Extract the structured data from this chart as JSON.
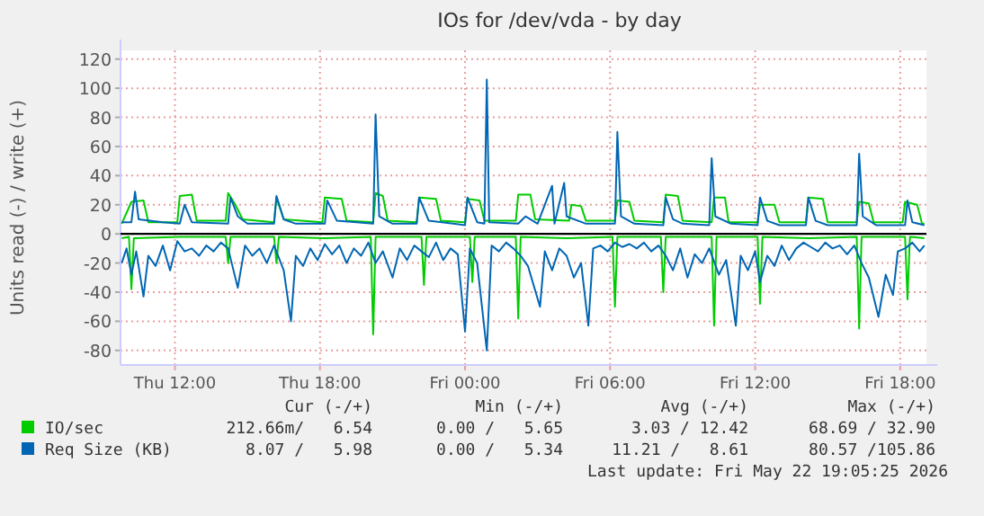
{
  "chart_data": {
    "type": "line",
    "title": "IOs for /dev/vda - by day",
    "ylabel": "Units read (-) / write (+)",
    "xlim": [
      "2026-05-21T09:45",
      "2026-05-22T19:05"
    ],
    "xticks": [
      {
        "value": "2026-05-21T12:00",
        "label": "Thu 12:00"
      },
      {
        "value": "2026-05-21T18:00",
        "label": "Thu 18:00"
      },
      {
        "value": "2026-05-22T00:00",
        "label": "Fri 00:00"
      },
      {
        "value": "2026-05-22T06:00",
        "label": "Fri 06:00"
      },
      {
        "value": "2026-05-22T12:00",
        "label": "Fri 12:00"
      },
      {
        "value": "2026-05-22T18:00",
        "label": "Fri 18:00"
      }
    ],
    "ylim": [
      -90,
      126
    ],
    "yticks": [
      -80,
      -60,
      -40,
      -20,
      0,
      20,
      40,
      60,
      80,
      100,
      120
    ],
    "grid": true,
    "legend": "bottom",
    "line_style": "solid",
    "ref_lines": [
      {
        "axis": "y",
        "value": 0,
        "color": "#000000"
      }
    ],
    "series": [
      {
        "name": "IO/sec",
        "color": "#00cc00",
        "x": [
          "2026-05-21T09:48",
          "2026-05-21T10:12",
          "2026-05-21T10:42",
          "2026-05-21T10:54",
          "2026-05-21T12:06",
          "2026-05-21T12:12",
          "2026-05-21T12:42",
          "2026-05-21T12:54",
          "2026-05-21T14:06",
          "2026-05-21T14:12",
          "2026-05-21T14:30",
          "2026-05-21T14:48",
          "2026-05-21T16:06",
          "2026-05-21T16:12",
          "2026-05-21T16:30",
          "2026-05-21T18:06",
          "2026-05-21T18:12",
          "2026-05-21T18:54",
          "2026-05-21T19:06",
          "2026-05-21T20:12",
          "2026-05-21T20:18",
          "2026-05-21T20:36",
          "2026-05-21T20:48",
          "2026-05-21T22:00",
          "2026-05-21T22:06",
          "2026-05-21T22:48",
          "2026-05-21T23:00",
          "2026-05-22T00:00",
          "2026-05-22T00:06",
          "2026-05-22T00:36",
          "2026-05-22T00:48",
          "2026-05-22T02:06",
          "2026-05-22T02:12",
          "2026-05-22T02:42",
          "2026-05-22T02:54",
          "2026-05-22T04:18",
          "2026-05-22T04:24",
          "2026-05-22T04:48",
          "2026-05-22T05:00",
          "2026-05-22T06:12",
          "2026-05-22T06:18",
          "2026-05-22T06:48",
          "2026-05-22T07:00",
          "2026-05-22T08:12",
          "2026-05-22T08:18",
          "2026-05-22T08:48",
          "2026-05-22T09:00",
          "2026-05-22T10:12",
          "2026-05-22T10:18",
          "2026-05-22T10:45",
          "2026-05-22T10:54",
          "2026-05-22T12:06",
          "2026-05-22T12:12",
          "2026-05-22T12:48",
          "2026-05-22T13:00",
          "2026-05-22T14:06",
          "2026-05-22T14:12",
          "2026-05-22T14:48",
          "2026-05-22T15:00",
          "2026-05-22T16:12",
          "2026-05-22T16:18",
          "2026-05-22T16:42",
          "2026-05-22T16:54",
          "2026-05-22T18:06",
          "2026-05-22T18:12",
          "2026-05-22T18:42",
          "2026-05-22T18:54",
          "2026-05-22T19:00"
        ],
        "values": [
          7,
          22,
          23,
          8,
          8,
          26,
          27,
          9,
          9,
          28,
          20,
          10,
          8,
          25,
          10,
          8,
          25,
          24,
          9,
          8,
          28,
          26,
          9,
          8,
          25,
          24,
          9,
          8,
          24,
          23,
          9,
          9,
          27,
          27,
          10,
          9,
          20,
          19,
          9,
          9,
          23,
          22,
          9,
          8,
          27,
          26,
          9,
          8,
          25,
          25,
          8,
          8,
          20,
          20,
          8,
          8,
          25,
          24,
          8,
          8,
          22,
          21,
          8,
          8,
          22,
          20,
          7,
          7
        ]
      },
      {
        "color": "#00cc00",
        "x": [
          "2026-05-21T09:48",
          "2026-05-21T10:06",
          "2026-05-21T10:12",
          "2026-05-21T10:18",
          "2026-05-21T12:12",
          "2026-05-21T14:06",
          "2026-05-21T14:12",
          "2026-05-21T14:18",
          "2026-05-21T16:06",
          "2026-05-21T16:12",
          "2026-05-21T16:18",
          "2026-05-21T18:12",
          "2026-05-21T20:06",
          "2026-05-21T20:12",
          "2026-05-21T20:18",
          "2026-05-21T22:12",
          "2026-05-21T22:18",
          "2026-05-21T22:24",
          "2026-05-22T00:12",
          "2026-05-22T00:18",
          "2026-05-22T00:24",
          "2026-05-22T02:06",
          "2026-05-22T02:12",
          "2026-05-22T02:18",
          "2026-05-22T04:12",
          "2026-05-22T06:06",
          "2026-05-22T06:12",
          "2026-05-22T06:18",
          "2026-05-22T08:06",
          "2026-05-22T08:12",
          "2026-05-22T08:18",
          "2026-05-22T10:12",
          "2026-05-22T10:18",
          "2026-05-22T10:24",
          "2026-05-22T12:06",
          "2026-05-22T12:12",
          "2026-05-22T12:18",
          "2026-05-22T14:12",
          "2026-05-22T16:12",
          "2026-05-22T16:18",
          "2026-05-22T16:24",
          "2026-05-22T18:12",
          "2026-05-22T18:18",
          "2026-05-22T18:24",
          "2026-05-22T19:00"
        ],
        "values": [
          -3,
          -2,
          -38,
          -3,
          -2,
          -2,
          -20,
          -2,
          -2,
          -20,
          -2,
          -3,
          -2,
          -69,
          -2,
          -2,
          -35,
          -2,
          -2,
          -33,
          -2,
          -2,
          -58,
          -2,
          -3,
          -2,
          -50,
          -2,
          -2,
          -40,
          -2,
          -2,
          -63,
          -2,
          -2,
          -48,
          -2,
          -3,
          -2,
          -65,
          -2,
          -2,
          -45,
          -2,
          -3
        ]
      },
      {
        "name": "Req Size (KB)",
        "color": "#0066b3",
        "x": [
          "2026-05-21T09:48",
          "2026-05-21T10:12",
          "2026-05-21T10:21",
          "2026-05-21T10:30",
          "2026-05-21T11:30",
          "2026-05-21T12:12",
          "2026-05-21T12:24",
          "2026-05-21T12:42",
          "2026-05-21T14:12",
          "2026-05-21T14:18",
          "2026-05-21T14:36",
          "2026-05-21T15:00",
          "2026-05-21T16:06",
          "2026-05-21T16:12",
          "2026-05-21T16:30",
          "2026-05-21T17:00",
          "2026-05-21T18:12",
          "2026-05-21T18:18",
          "2026-05-21T18:42",
          "2026-05-21T20:12",
          "2026-05-21T20:18",
          "2026-05-21T20:27",
          "2026-05-21T21:00",
          "2026-05-21T22:00",
          "2026-05-21T22:06",
          "2026-05-21T22:30",
          "2026-05-22T00:00",
          "2026-05-22T00:06",
          "2026-05-22T00:30",
          "2026-05-22T00:48",
          "2026-05-22T00:54",
          "2026-05-22T01:00",
          "2026-05-22T02:12",
          "2026-05-22T02:30",
          "2026-05-22T03:00",
          "2026-05-22T03:36",
          "2026-05-22T03:42",
          "2026-05-22T04:06",
          "2026-05-22T04:12",
          "2026-05-22T05:00",
          "2026-05-22T06:12",
          "2026-05-22T06:18",
          "2026-05-22T06:27",
          "2026-05-22T07:00",
          "2026-05-22T08:12",
          "2026-05-22T08:18",
          "2026-05-22T08:36",
          "2026-05-22T09:00",
          "2026-05-22T10:06",
          "2026-05-22T10:12",
          "2026-05-22T10:21",
          "2026-05-22T11:00",
          "2026-05-22T12:06",
          "2026-05-22T12:12",
          "2026-05-22T12:30",
          "2026-05-22T13:00",
          "2026-05-22T14:06",
          "2026-05-22T14:12",
          "2026-05-22T14:30",
          "2026-05-22T15:00",
          "2026-05-22T16:12",
          "2026-05-22T16:18",
          "2026-05-22T16:27",
          "2026-05-22T17:00",
          "2026-05-22T18:12",
          "2026-05-22T18:18",
          "2026-05-22T18:30",
          "2026-05-22T19:00"
        ],
        "values": [
          8,
          8,
          29,
          10,
          8,
          7,
          20,
          8,
          7,
          25,
          12,
          7,
          7,
          26,
          10,
          7,
          7,
          23,
          9,
          7,
          82,
          12,
          7,
          7,
          25,
          9,
          6,
          25,
          8,
          7,
          106,
          8,
          7,
          12,
          7,
          33,
          7,
          35,
          12,
          7,
          7,
          70,
          12,
          7,
          6,
          25,
          10,
          7,
          6,
          52,
          12,
          7,
          6,
          25,
          9,
          6,
          6,
          25,
          9,
          6,
          6,
          55,
          12,
          6,
          6,
          23,
          8,
          6
        ]
      },
      {
        "color": "#0066b3",
        "x": [
          "2026-05-21T09:48",
          "2026-05-21T10:00",
          "2026-05-21T10:12",
          "2026-05-21T10:24",
          "2026-05-21T10:42",
          "2026-05-21T10:54",
          "2026-05-21T11:12",
          "2026-05-21T11:30",
          "2026-05-21T11:48",
          "2026-05-21T12:06",
          "2026-05-21T12:24",
          "2026-05-21T12:42",
          "2026-05-21T13:00",
          "2026-05-21T13:18",
          "2026-05-21T13:36",
          "2026-05-21T13:54",
          "2026-05-21T14:12",
          "2026-05-21T14:36",
          "2026-05-21T14:54",
          "2026-05-21T15:12",
          "2026-05-21T15:30",
          "2026-05-21T15:48",
          "2026-05-21T16:06",
          "2026-05-21T16:30",
          "2026-05-21T16:48",
          "2026-05-21T17:00",
          "2026-05-21T17:18",
          "2026-05-21T17:36",
          "2026-05-21T17:54",
          "2026-05-21T18:12",
          "2026-05-21T18:30",
          "2026-05-21T18:48",
          "2026-05-21T19:06",
          "2026-05-21T19:24",
          "2026-05-21T19:42",
          "2026-05-21T20:00",
          "2026-05-21T20:18",
          "2026-05-21T20:36",
          "2026-05-21T21:00",
          "2026-05-21T21:18",
          "2026-05-21T21:36",
          "2026-05-21T21:54",
          "2026-05-21T22:12",
          "2026-05-21T22:30",
          "2026-05-21T22:48",
          "2026-05-21T23:06",
          "2026-05-21T23:24",
          "2026-05-21T23:42",
          "2026-05-22T00:00",
          "2026-05-22T00:12",
          "2026-05-22T00:30",
          "2026-05-22T00:54",
          "2026-05-22T01:06",
          "2026-05-22T01:24",
          "2026-05-22T01:42",
          "2026-05-22T02:00",
          "2026-05-22T02:18",
          "2026-05-22T02:36",
          "2026-05-22T03:06",
          "2026-05-22T03:18",
          "2026-05-22T03:36",
          "2026-05-22T03:54",
          "2026-05-22T04:12",
          "2026-05-22T04:30",
          "2026-05-22T04:48",
          "2026-05-22T05:06",
          "2026-05-22T05:18",
          "2026-05-22T05:36",
          "2026-05-22T05:54",
          "2026-05-22T06:12",
          "2026-05-22T06:30",
          "2026-05-22T06:48",
          "2026-05-22T07:06",
          "2026-05-22T07:24",
          "2026-05-22T07:42",
          "2026-05-22T08:00",
          "2026-05-22T08:18",
          "2026-05-22T08:36",
          "2026-05-22T08:54",
          "2026-05-22T09:12",
          "2026-05-22T09:30",
          "2026-05-22T09:48",
          "2026-05-22T10:06",
          "2026-05-22T10:30",
          "2026-05-22T10:48",
          "2026-05-22T11:12",
          "2026-05-22T11:24",
          "2026-05-22T11:42",
          "2026-05-22T12:00",
          "2026-05-22T12:12",
          "2026-05-22T12:30",
          "2026-05-22T12:48",
          "2026-05-22T13:06",
          "2026-05-22T13:24",
          "2026-05-22T13:42",
          "2026-05-22T14:00",
          "2026-05-22T14:18",
          "2026-05-22T14:36",
          "2026-05-22T14:54",
          "2026-05-22T15:12",
          "2026-05-22T15:30",
          "2026-05-22T15:48",
          "2026-05-22T16:06",
          "2026-05-22T16:24",
          "2026-05-22T16:42",
          "2026-05-22T17:06",
          "2026-05-22T17:24",
          "2026-05-22T17:42",
          "2026-05-22T17:54",
          "2026-05-22T18:12",
          "2026-05-22T18:30",
          "2026-05-22T18:48",
          "2026-05-22T19:00"
        ],
        "values": [
          -20,
          -10,
          -28,
          -12,
          -43,
          -15,
          -22,
          -8,
          -25,
          -5,
          -12,
          -10,
          -15,
          -8,
          -12,
          -6,
          -10,
          -37,
          -8,
          -15,
          -10,
          -20,
          -8,
          -25,
          -60,
          -15,
          -22,
          -10,
          -18,
          -7,
          -14,
          -8,
          -20,
          -10,
          -15,
          -6,
          -20,
          -12,
          -30,
          -10,
          -18,
          -8,
          -12,
          -16,
          -6,
          -18,
          -10,
          -14,
          -67,
          -10,
          -20,
          -80,
          -8,
          -12,
          -6,
          -10,
          -15,
          -22,
          -50,
          -12,
          -25,
          -10,
          -15,
          -30,
          -20,
          -63,
          -10,
          -8,
          -12,
          -6,
          -9,
          -7,
          -10,
          -6,
          -12,
          -8,
          -15,
          -25,
          -10,
          -30,
          -14,
          -20,
          -10,
          -28,
          -18,
          -63,
          -15,
          -25,
          -12,
          -33,
          -15,
          -22,
          -8,
          -18,
          -10,
          -6,
          -9,
          -12,
          -6,
          -10,
          -8,
          -14,
          -8,
          -20,
          -30,
          -57,
          -28,
          -42,
          -12,
          -10,
          -6,
          -12,
          -8
        ]
      }
    ],
    "annotations": [
      "Cur (-/+)",
      "Min (-/+)",
      "Avg (-/+)",
      "Max (-/+)",
      "212.66m/   6.54",
      "0.00 /   5.65",
      "3.03 / 12.42",
      "68.69 / 32.90",
      "8.07 /   5.98",
      "0.00 /   5.34",
      "11.21 /   8.61",
      "80.57 /105.86",
      "Last update: Fri May 22 19:05:25 2026"
    ]
  }
}
